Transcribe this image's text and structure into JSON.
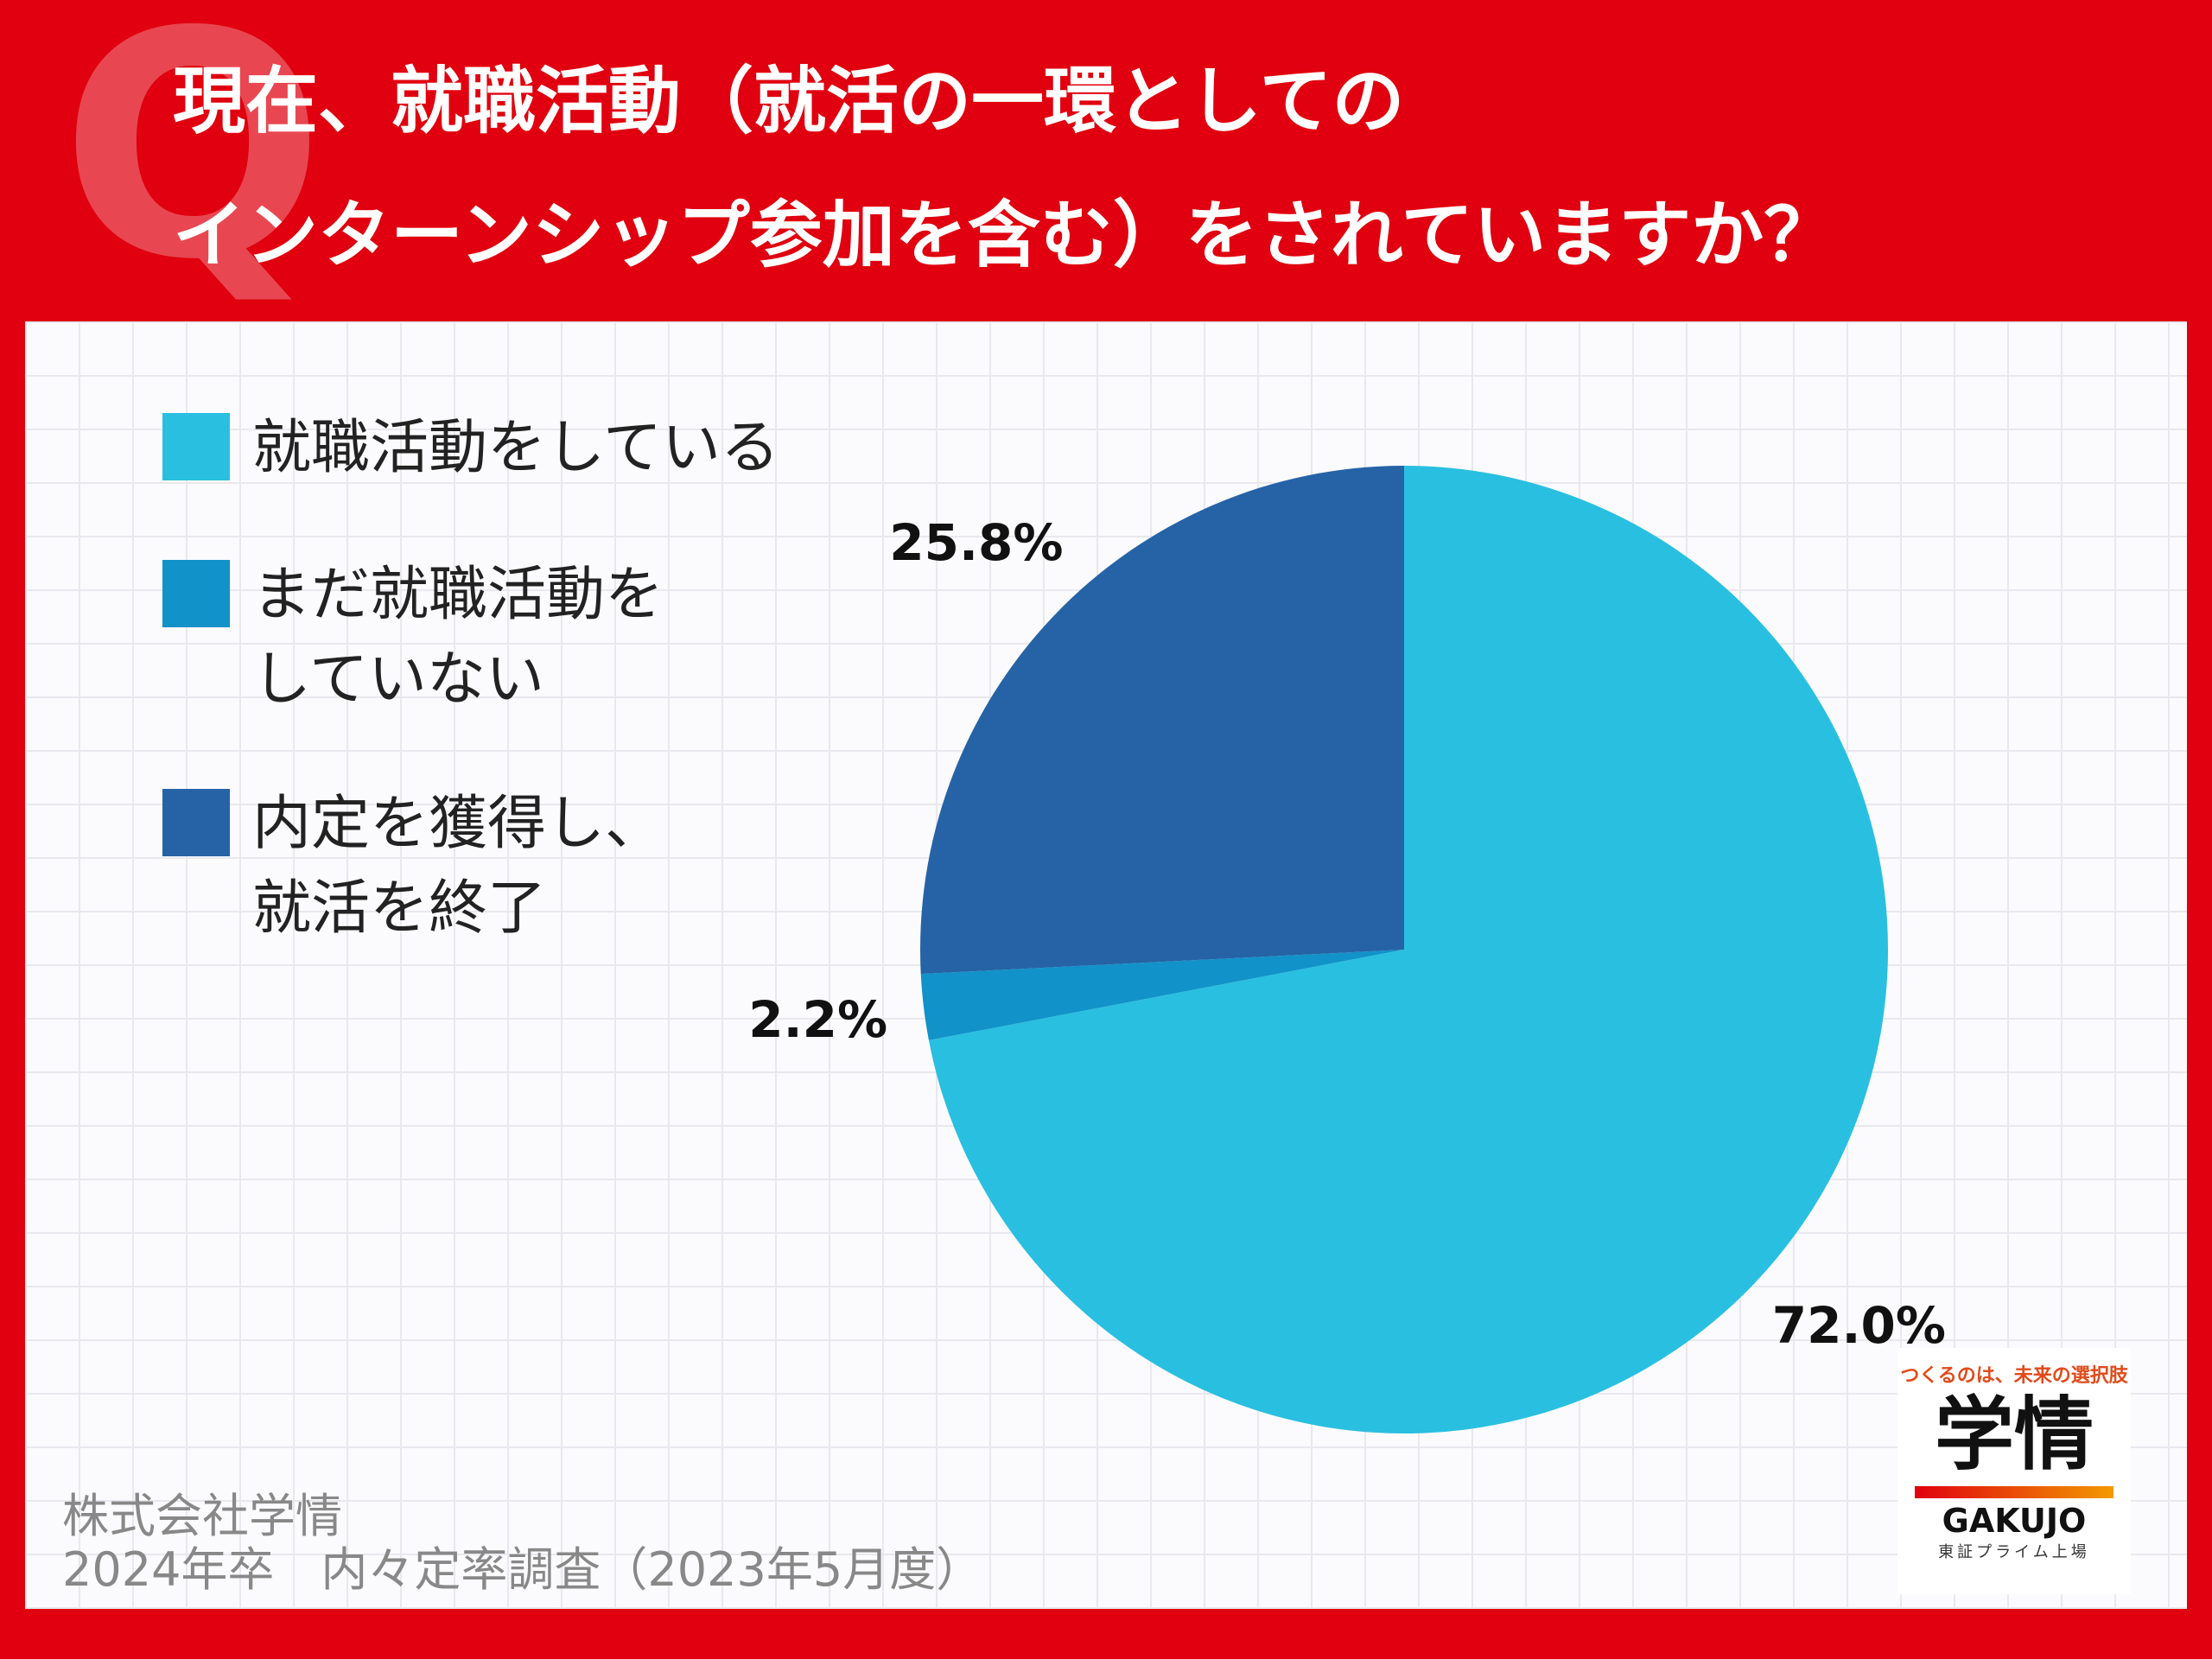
{
  "badge": "Q",
  "chart_data": {
    "type": "pie",
    "title": "現在、就職活動（就活の一環としての\nインターンシップ参加を含む）をされていますか？",
    "categories": [
      "就職活動をしている",
      "まだ就職活動を\nしていない",
      "内定を獲得し、\n就活を終了"
    ],
    "values": [
      72.0,
      2.2,
      25.8
    ],
    "value_labels": [
      "72.0%",
      "2.2%",
      "25.8%"
    ],
    "colors": [
      "#29bfe0",
      "#1192c8",
      "#2563a6"
    ],
    "legend": "upper left"
  },
  "footer": [
    "株式会社学情",
    "2024年卒　内々定率調査（2023年5月度）"
  ],
  "logo": {
    "tagline": "つくるのは、未来の選択肢",
    "name": "学情",
    "roman": "GAKUJO",
    "note": "東証プライム上場"
  }
}
